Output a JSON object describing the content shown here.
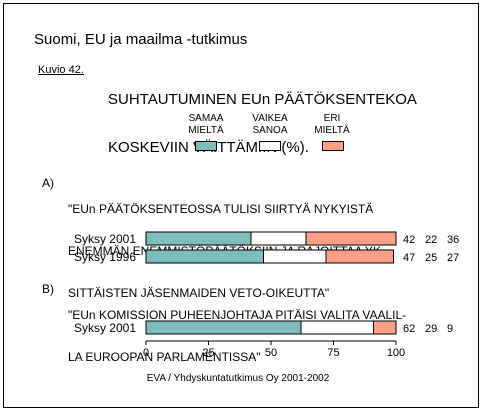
{
  "survey_title": "Suomi, EU ja maailma -tutkimus",
  "figure_label": "Kuvio 42.",
  "figure_title_lines": [
    "SUHTAUTUMINEN EUn PÄÄTÖKSENTEKOA",
    "KOSKEVIIN VÄITTÄMIIN (%)."
  ],
  "footer": "EVA / Yhdyskuntatutkimus Oy 2001-2002",
  "chart_data": {
    "type": "bar",
    "stacked": true,
    "orientation": "horizontal",
    "legend": [
      {
        "name_lines": [
          "SAMAA",
          "MIELTÄ"
        ],
        "color": "#7fbcbc"
      },
      {
        "name_lines": [
          "VAIKEA",
          "SANOA"
        ],
        "color": "#ffffff"
      },
      {
        "name_lines": [
          "ERI",
          "MIELTÄ"
        ],
        "color": "#ff9f88"
      }
    ],
    "questions": [
      {
        "letter": "A)",
        "text_lines": [
          "\"EUn PÄÄTÖKSENTEOSSA TULISI SIIRTYÄ NYKYISTÄ",
          "ENEMMÄN ENEMMISTÖPÄÄTÖKSIIN JA RAJOITTAA YK-",
          "SITTÄISTEN JÄSENMAIDEN VETO-OIKEUTTA\""
        ],
        "rows": [
          {
            "label": "Syksy 2001",
            "values": [
              42,
              22,
              36
            ]
          },
          {
            "label": "Syksy 1996",
            "values": [
              47,
              25,
              27
            ]
          }
        ]
      },
      {
        "letter": "B)",
        "text_lines": [
          "\"EUn KOMISSION PUHEENJOHTAJA PITÄISI VALITA VAALIL-",
          "LA EUROOPAN PARLAMENTISSA\""
        ],
        "rows": [
          {
            "label": "Syksy 2001",
            "values": [
              62,
              29,
              9
            ]
          }
        ]
      }
    ],
    "xlim": [
      0,
      100
    ],
    "xticks": [
      0,
      25,
      50,
      75,
      100
    ]
  }
}
